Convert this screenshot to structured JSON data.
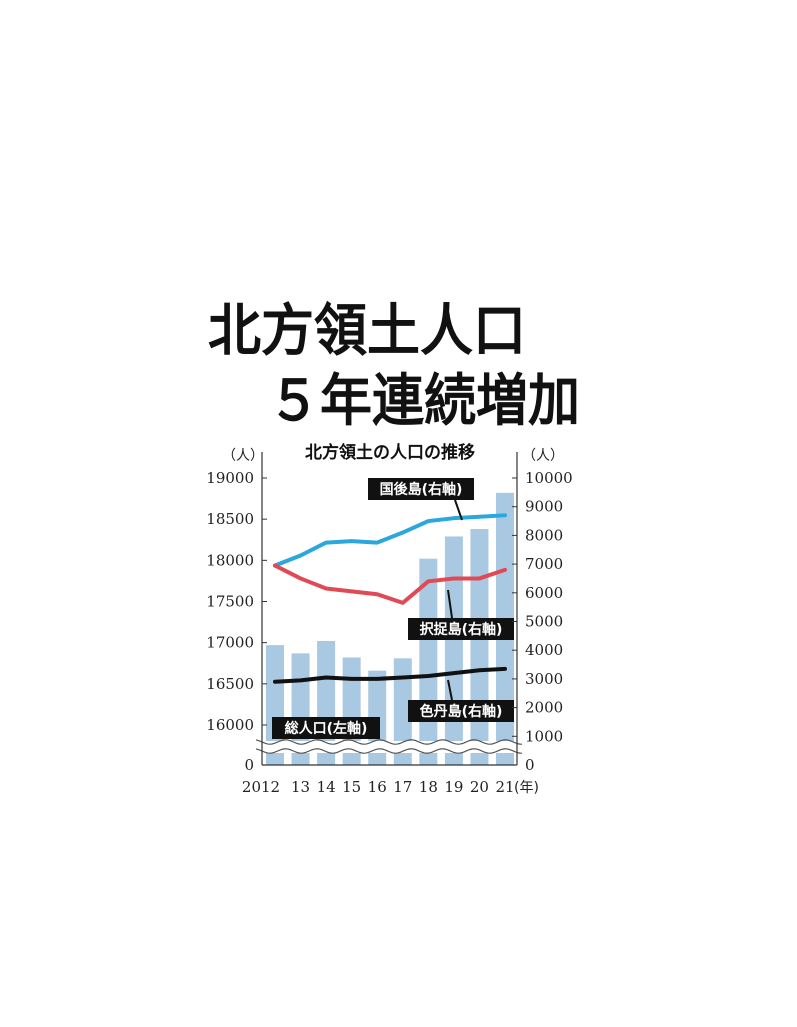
{
  "headline": {
    "line1": "北方領土人口",
    "line2": "５年連続増加"
  },
  "chart_data": {
    "type": "bar+line",
    "title": "北方領土の人口の推移",
    "y_left_unit": "（人）",
    "y_right_unit": "（人）",
    "x_unit": "(年)",
    "categories": [
      "2012",
      "13",
      "14",
      "15",
      "16",
      "17",
      "18",
      "19",
      "20",
      "21"
    ],
    "y_left_ticks": [
      "19000",
      "18500",
      "18000",
      "17500",
      "17000",
      "16500",
      "16000",
      "0"
    ],
    "y_right_ticks": [
      "10000",
      "9000",
      "8000",
      "7000",
      "6000",
      "5000",
      "4000",
      "3000",
      "2000",
      "1000",
      "0"
    ],
    "y_left_axis": {
      "min": 15750,
      "max": 19000,
      "broken": true,
      "shown_zero": 0
    },
    "y_right_range": [
      0,
      10000
    ],
    "bars": {
      "name": "総人口(左軸)",
      "axis": "left",
      "color": "#a9c8e2",
      "values": [
        16970,
        16870,
        17020,
        16820,
        16660,
        16810,
        18020,
        18290,
        18380,
        18820
      ]
    },
    "lines": [
      {
        "name": "国後島(右軸)",
        "axis": "right",
        "color": "#2aa7dd",
        "values": [
          6950,
          7300,
          7750,
          7800,
          7750,
          8100,
          8500,
          8600,
          8650,
          8700
        ]
      },
      {
        "name": "択捉島(右軸)",
        "axis": "right",
        "color": "#e04a55",
        "values": [
          6950,
          6500,
          6150,
          6050,
          5950,
          5650,
          6400,
          6500,
          6500,
          6800
        ]
      },
      {
        "name": "色丹島(右軸)",
        "axis": "right",
        "color": "#111111",
        "values": [
          2900,
          2950,
          3050,
          3000,
          3000,
          3050,
          3100,
          3200,
          3300,
          3350
        ]
      }
    ],
    "grid": false,
    "legend": "inline-labels"
  }
}
